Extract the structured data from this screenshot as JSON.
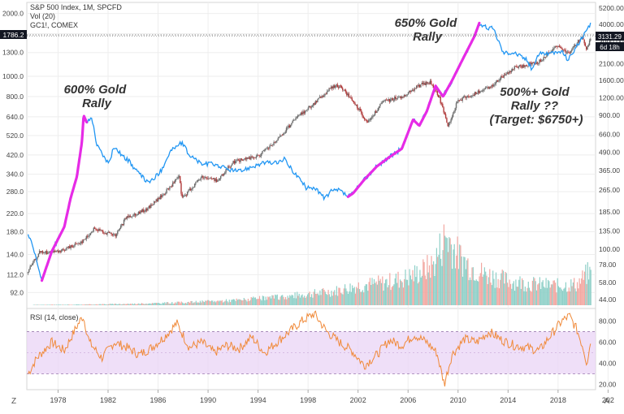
{
  "header": {
    "symbol_line": "S&P 500 Index, 1M, SPCFD",
    "vol_line": "Vol (20)",
    "gold_line": "GC1!, COMEX"
  },
  "rsi_panel": {
    "label": "RSI (14, close)"
  },
  "annotations": {
    "rally1": [
      "600% Gold",
      "Rally"
    ],
    "rally2": [
      "650% Gold",
      "Rally"
    ],
    "rally3": [
      "500%+ Gold",
      "Rally ??",
      "(Target: $6750+)"
    ]
  },
  "badges": {
    "gold_price": "1786.2",
    "spx_price": "3131.29",
    "countdown": "6d 18h"
  },
  "corner_labels": {
    "zoom": "Z",
    "auto": "A"
  },
  "colors": {
    "gold_line": "#2196f3",
    "rally_highlight": "#e62be6",
    "candle_up": "#6b6b6b",
    "candle_down": "#b03a3a",
    "vol_up": "#8fd0c8",
    "vol_down": "#f2a7a1",
    "rsi_line": "#f08a3a",
    "rsi_band": "#e9d4f5",
    "badge_dark": "#131722"
  },
  "chart_data": [
    {
      "type": "line",
      "title": "",
      "xlabel": "",
      "ylabel": "",
      "x_ticks": [
        "1978",
        "1982",
        "1986",
        "1990",
        "1994",
        "1998",
        "2002",
        "2006",
        "2010",
        "2014",
        "2018",
        "202"
      ],
      "x_range": [
        1975.5,
        2021.0
      ],
      "y_log_scale": true,
      "left_axis": {
        "label": "",
        "ticks": [
          "92.0",
          "112.0",
          "140.0",
          "180.0",
          "220.0",
          "280.0",
          "340.0",
          "420.0",
          "520.0",
          "640.0",
          "800.0",
          "1000.0",
          "1300.0",
          "1600.0",
          "2000.0"
        ],
        "range": [
          80,
          2200
        ]
      },
      "right_axis": {
        "label": "",
        "ticks": [
          "44.00",
          "58.00",
          "78.00",
          "100.00",
          "135.00",
          "185.00",
          "265.00",
          "365.00",
          "490.00",
          "660.00",
          "900.00",
          "1200.00",
          "1600.00",
          "2100.00",
          "3000.00",
          "4000.00",
          "5200.00"
        ],
        "range": [
          40,
          5500
        ]
      },
      "series": [
        {
          "name": "GC1!, COMEX",
          "axis": "left",
          "x": [
            1975.6,
            1976.0,
            1976.7,
            1977.5,
            1978.5,
            1979.0,
            1979.5,
            1979.9,
            1980.05,
            1980.3,
            1980.7,
            1981.1,
            1981.6,
            1982.0,
            1982.5,
            1983.1,
            1983.7,
            1984.5,
            1985.2,
            1985.6,
            1986.2,
            1987.0,
            1987.9,
            1988.5,
            1989.5,
            1990.5,
            1991.5,
            1992.5,
            1993.5,
            1994.5,
            1995.5,
            1996.1,
            1997.0,
            1997.9,
            1998.5,
            1999.3,
            1999.8,
            2000.5,
            2001.2,
            2001.6,
            2002.5,
            2003.5,
            2004.5,
            2005.5,
            2006.4,
            2006.9,
            2007.5,
            2008.2,
            2008.8,
            2009.5,
            2010.5,
            2011.3,
            2011.7,
            2012.3,
            2012.8,
            2013.3,
            2013.6,
            2014.5,
            2015.5,
            2015.9,
            2016.5,
            2017.5,
            2018.3,
            2018.8,
            2019.5,
            2019.9,
            2020.3,
            2020.6
          ],
          "y": [
            175,
            150,
            105,
            145,
            190,
            260,
            330,
            480,
            650,
            600,
            640,
            470,
            420,
            380,
            460,
            420,
            390,
            340,
            310,
            320,
            350,
            440,
            480,
            420,
            380,
            380,
            360,
            350,
            370,
            385,
            385,
            400,
            340,
            290,
            295,
            260,
            280,
            285,
            265,
            275,
            320,
            370,
            410,
            450,
            620,
            580,
            680,
            900,
            800,
            950,
            1250,
            1550,
            1800,
            1700,
            1700,
            1450,
            1300,
            1300,
            1200,
            1080,
            1300,
            1280,
            1320,
            1200,
            1400,
            1520,
            1650,
            1786
          ]
        },
        {
          "name": "S&P 500 Index",
          "axis": "right",
          "x": [
            1975.6,
            1976.5,
            1978.0,
            1980.0,
            1980.9,
            1982.6,
            1983.5,
            1985.0,
            1986.5,
            1987.7,
            1987.9,
            1989.5,
            1990.8,
            1992.0,
            1994.0,
            1995.5,
            1997.0,
            1998.5,
            2000.0,
            2000.6,
            2001.5,
            2002.8,
            2004.0,
            2005.5,
            2007.0,
            2007.8,
            2008.5,
            2009.2,
            2010.0,
            2011.5,
            2012.5,
            2013.5,
            2014.5,
            2015.5,
            2016.5,
            2017.5,
            2018.0,
            2018.9,
            2019.5,
            2020.0,
            2020.25,
            2020.6
          ],
          "y": [
            70,
            95,
            95,
            115,
            140,
            125,
            170,
            190,
            250,
            330,
            230,
            330,
            310,
            420,
            460,
            590,
            850,
            1100,
            1450,
            1450,
            1150,
            800,
            1130,
            1220,
            1480,
            1550,
            1200,
            760,
            1150,
            1300,
            1420,
            1680,
            1960,
            2060,
            2180,
            2600,
            2800,
            2500,
            2940,
            3230,
            2580,
            3131
          ]
        }
      ]
    },
    {
      "type": "bar",
      "title": "",
      "xlabel": "",
      "ylabel": "",
      "series_name": "Vol (20)",
      "x": [
        1976,
        1980,
        1984,
        1988,
        1992,
        1996,
        2000,
        2002,
        2004,
        2006,
        2007,
        2008,
        2009,
        2010,
        2011,
        2012,
        2014,
        2016,
        2018,
        2019.5,
        2020.3
      ],
      "values": [
        0.5,
        1,
        2,
        4,
        7,
        12,
        20,
        28,
        32,
        40,
        48,
        58,
        100,
        70,
        55,
        45,
        35,
        30,
        28,
        30,
        45
      ]
    },
    {
      "type": "line",
      "title": "RSI (14, close)",
      "xlabel": "",
      "ylabel": "",
      "y_ticks": [
        "20.00",
        "40.00",
        "60.00",
        "80.00"
      ],
      "ylim": [
        15,
        92
      ],
      "bands": [
        30,
        70
      ],
      "x": [
        1975.6,
        1976.3,
        1977.5,
        1978.5,
        1979.5,
        1980.0,
        1980.5,
        1981.5,
        1982.5,
        1983.5,
        1984.5,
        1985.5,
        1986.5,
        1987.5,
        1988.5,
        1989.5,
        1990.5,
        1991.5,
        1992.5,
        1993.5,
        1994.5,
        1995.5,
        1996.5,
        1997.5,
        1998.5,
        1999.5,
        2000.5,
        2001.5,
        2002.5,
        2003.5,
        2004.5,
        2005.5,
        2006.5,
        2007.5,
        2008.3,
        2008.9,
        2009.5,
        2010.5,
        2011.5,
        2012.5,
        2013.5,
        2014.5,
        2015.5,
        2016.5,
        2017.5,
        2018.3,
        2018.9,
        2019.5,
        2020.0,
        2020.3,
        2020.6
      ],
      "values": [
        30,
        45,
        60,
        52,
        75,
        85,
        60,
        45,
        60,
        55,
        48,
        55,
        65,
        78,
        55,
        60,
        50,
        57,
        54,
        65,
        50,
        60,
        70,
        80,
        87,
        70,
        60,
        52,
        38,
        48,
        62,
        57,
        67,
        60,
        50,
        20,
        48,
        63,
        60,
        70,
        62,
        57,
        55,
        52,
        68,
        80,
        85,
        72,
        55,
        40,
        60
      ]
    }
  ]
}
